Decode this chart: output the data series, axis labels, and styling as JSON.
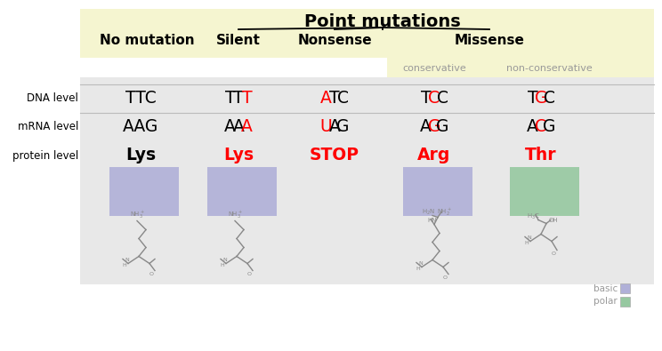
{
  "title": "Point mutations",
  "bg_color": "#ffffff",
  "header_bg": "#f5f5d0",
  "table_bg": "#e8e8e8",
  "red_color": "#ff0000",
  "black_color": "#000000",
  "gray_color": "#999999",
  "dark_gray": "#555555",
  "basic_color": "#b0b0d8",
  "polar_color": "#96c8a0",
  "dna_entries": [
    [
      "TTC",
      -1
    ],
    [
      "TTT",
      2
    ],
    [
      "ATC",
      0
    ],
    [
      "TCC",
      1
    ],
    [
      "TGC",
      1
    ]
  ],
  "mrna_entries": [
    [
      "AAG",
      -1
    ],
    [
      "AAA",
      2
    ],
    [
      "UAG",
      0
    ],
    [
      "AGG",
      1
    ],
    [
      "ACG",
      1
    ]
  ],
  "protein_entries": [
    [
      "Lys",
      false
    ],
    [
      "Lys",
      true
    ],
    [
      "STOP",
      true
    ],
    [
      "Arg",
      true
    ],
    [
      "Thr",
      true
    ]
  ],
  "amino_box_colors": [
    "#b0b0d8",
    "#b0b0d8",
    null,
    "#b0b0d8",
    "#96c8a0"
  ]
}
